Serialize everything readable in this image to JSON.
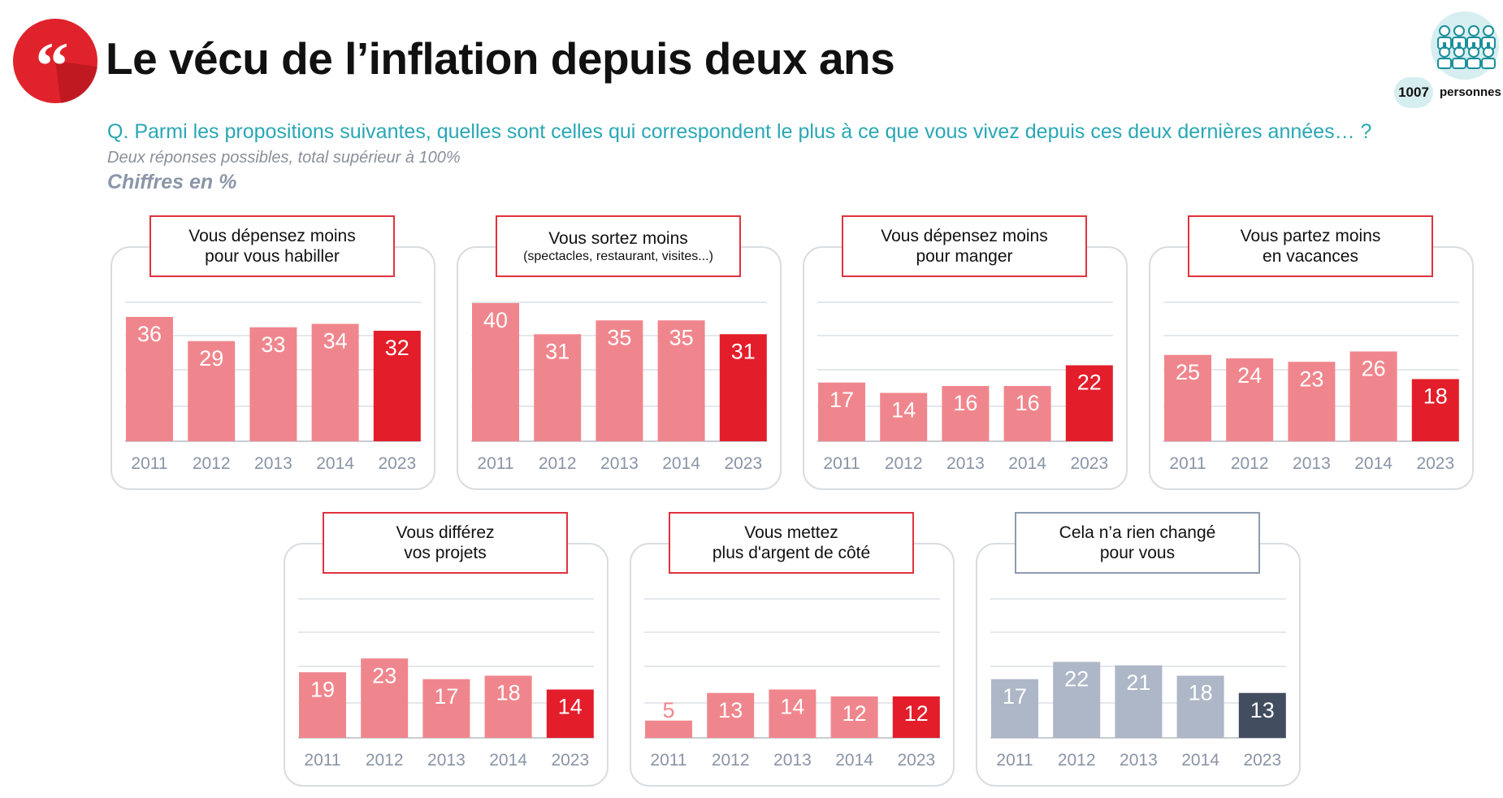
{
  "header": {
    "title": "Le vécu de l’inflation depuis deux ans",
    "question": "Q. Parmi les propositions suivantes, quelles sont celles qui correspondent le plus à ce que vous vivez depuis ces deux dernières années… ?",
    "note": "Deux réponses possibles, total supérieur à 100%",
    "unit": "Chiffres en %"
  },
  "badge": {
    "count": "1007",
    "label": "personnes"
  },
  "colors": {
    "accent_red": "#e31e2a",
    "light_red": "#f0868d",
    "dark_slate": "#434d60",
    "light_slate": "#aeb7c7",
    "question_teal": "#29a7b4",
    "frame_grey": "#d9dce2"
  },
  "icons": [
    "quote-icon",
    "people-group-icon"
  ],
  "chart_data": [
    {
      "type": "bar",
      "title_lines": [
        "Vous dépensez moins",
        "pour vous habiller"
      ],
      "categories": [
        "2011",
        "2012",
        "2013",
        "2014",
        "2023"
      ],
      "values": [
        36,
        29,
        33,
        34,
        32
      ],
      "color": "#f0868d",
      "highlight_color": "#e31e2a",
      "ylim": [
        0,
        45
      ],
      "grid": true
    },
    {
      "type": "bar",
      "title_lines": [
        "Vous sortez moins",
        "(spectacles, restaurant, visites...)"
      ],
      "categories": [
        "2011",
        "2012",
        "2013",
        "2014",
        "2023"
      ],
      "values": [
        40,
        31,
        35,
        35,
        31
      ],
      "color": "#f0868d",
      "highlight_color": "#e31e2a",
      "ylim": [
        0,
        45
      ],
      "grid": true
    },
    {
      "type": "bar",
      "title_lines": [
        "Vous dépensez moins",
        "pour manger"
      ],
      "categories": [
        "2011",
        "2012",
        "2013",
        "2014",
        "2023"
      ],
      "values": [
        17,
        14,
        16,
        16,
        22
      ],
      "color": "#f0868d",
      "highlight_color": "#e31e2a",
      "ylim": [
        0,
        45
      ],
      "grid": true
    },
    {
      "type": "bar",
      "title_lines": [
        "Vous partez moins",
        "en vacances"
      ],
      "categories": [
        "2011",
        "2012",
        "2013",
        "2014",
        "2023"
      ],
      "values": [
        25,
        24,
        23,
        26,
        18
      ],
      "color": "#f0868d",
      "highlight_color": "#e31e2a",
      "ylim": [
        0,
        45
      ],
      "grid": true
    },
    {
      "type": "bar",
      "title_lines": [
        "Vous différez",
        "vos projets"
      ],
      "categories": [
        "2011",
        "2012",
        "2013",
        "2014",
        "2023"
      ],
      "values": [
        19,
        23,
        17,
        18,
        14
      ],
      "color": "#f0868d",
      "highlight_color": "#e31e2a",
      "ylim": [
        0,
        45
      ],
      "grid": true
    },
    {
      "type": "bar",
      "title_lines": [
        "Vous mettez",
        "plus d'argent de côté"
      ],
      "categories": [
        "2011",
        "2012",
        "2013",
        "2014",
        "2023"
      ],
      "values": [
        5,
        13,
        14,
        12,
        12
      ],
      "color": "#f0868d",
      "highlight_color": "#e31e2a",
      "ylim": [
        0,
        45
      ],
      "grid": true
    },
    {
      "type": "bar",
      "title_lines": [
        "Cela n’a rien changé",
        "pour vous"
      ],
      "categories": [
        "2011",
        "2012",
        "2013",
        "2014",
        "2023"
      ],
      "values": [
        17,
        22,
        21,
        18,
        13
      ],
      "color": "#aeb7c7",
      "highlight_color": "#434d60",
      "ylim": [
        0,
        45
      ],
      "grid": true
    }
  ]
}
